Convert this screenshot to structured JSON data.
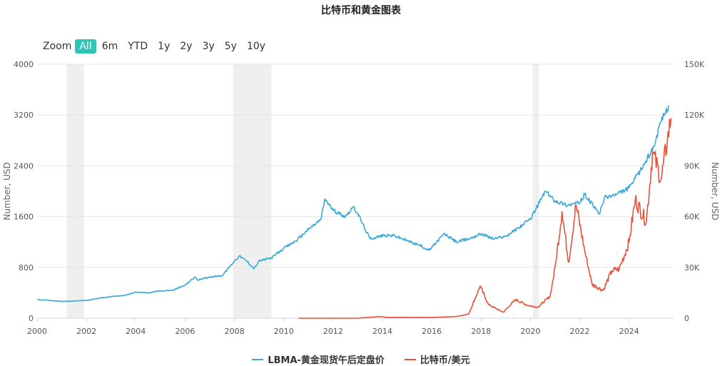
{
  "title": "比特币和黄金图表",
  "zoom": {
    "label": "Zoom",
    "buttons": [
      "All",
      "6m",
      "YTD",
      "1y",
      "2y",
      "3y",
      "5y",
      "10y"
    ],
    "active": "All"
  },
  "chart_data": {
    "type": "line",
    "title": "比特币和黄金图表",
    "x_ticks": [
      "2000",
      "2002",
      "2004",
      "2006",
      "2008",
      "2010",
      "2012",
      "2014",
      "2016",
      "2018",
      "2020",
      "2022",
      "2024"
    ],
    "y_left": {
      "label": "Number, USD",
      "ticks": [
        "0",
        "800",
        "1600",
        "2400",
        "3200",
        "4000"
      ],
      "range": [
        0,
        4000
      ]
    },
    "y_right": {
      "label": "Number, USD",
      "ticks": [
        "0",
        "30K",
        "60K",
        "90K",
        "120K",
        "150K"
      ],
      "range": [
        0,
        150000
      ]
    },
    "x_range": [
      2000,
      2025.8
    ],
    "grid": true,
    "legend_position": "bottom-center",
    "recession_bands": [
      [
        2001.2,
        2001.9
      ],
      [
        2007.95,
        2009.5
      ],
      [
        2020.1,
        2020.35
      ]
    ],
    "series": [
      {
        "name": "LBMA-黄金现货午后定盘价",
        "axis": "left",
        "color": "#3aa8d8",
        "x": [
          2000.0,
          2000.5,
          2001.0,
          2001.5,
          2002.0,
          2002.5,
          2003.0,
          2003.5,
          2004.0,
          2004.5,
          2005.0,
          2005.5,
          2006.0,
          2006.4,
          2006.5,
          2007.0,
          2007.5,
          2008.0,
          2008.2,
          2008.5,
          2008.8,
          2009.0,
          2009.5,
          2010.0,
          2010.5,
          2011.0,
          2011.5,
          2011.67,
          2012.0,
          2012.5,
          2012.8,
          2013.0,
          2013.3,
          2013.5,
          2014.0,
          2014.5,
          2015.0,
          2015.5,
          2015.9,
          2016.5,
          2017.0,
          2017.5,
          2018.0,
          2018.5,
          2019.0,
          2019.5,
          2020.0,
          2020.6,
          2021.0,
          2021.5,
          2022.0,
          2022.2,
          2022.8,
          2023.0,
          2023.5,
          2024.0,
          2024.5,
          2025.0,
          2025.3,
          2025.6
        ],
        "y": [
          290,
          280,
          265,
          270,
          280,
          315,
          340,
          355,
          410,
          400,
          430,
          440,
          520,
          650,
          600,
          650,
          670,
          900,
          980,
          900,
          780,
          900,
          950,
          1100,
          1220,
          1400,
          1550,
          1880,
          1700,
          1600,
          1750,
          1650,
          1400,
          1250,
          1300,
          1300,
          1220,
          1150,
          1070,
          1330,
          1200,
          1250,
          1330,
          1250,
          1290,
          1420,
          1560,
          2000,
          1850,
          1780,
          1820,
          1950,
          1640,
          1900,
          1950,
          2050,
          2350,
          2700,
          3100,
          3350
        ]
      },
      {
        "name": "比特币/美元",
        "axis": "right",
        "color": "#e8513a",
        "x": [
          2010.6,
          2013.0,
          2013.9,
          2014.2,
          2016.0,
          2017.0,
          2017.5,
          2017.96,
          2018.3,
          2018.9,
          2019.4,
          2019.9,
          2020.3,
          2020.8,
          2021.0,
          2021.28,
          2021.55,
          2021.85,
          2022.2,
          2022.5,
          2022.95,
          2023.3,
          2023.6,
          2024.0,
          2024.25,
          2024.7,
          2024.95,
          2025.3,
          2025.55,
          2025.7
        ],
        "y": [
          0,
          0,
          1000,
          500,
          450,
          1000,
          2500,
          19000,
          8000,
          3500,
          11000,
          7500,
          6500,
          13000,
          30000,
          63000,
          33000,
          67000,
          40000,
          20000,
          16500,
          28000,
          29000,
          45000,
          70000,
          57000,
          98000,
          82000,
          105000,
          118000
        ]
      }
    ]
  }
}
